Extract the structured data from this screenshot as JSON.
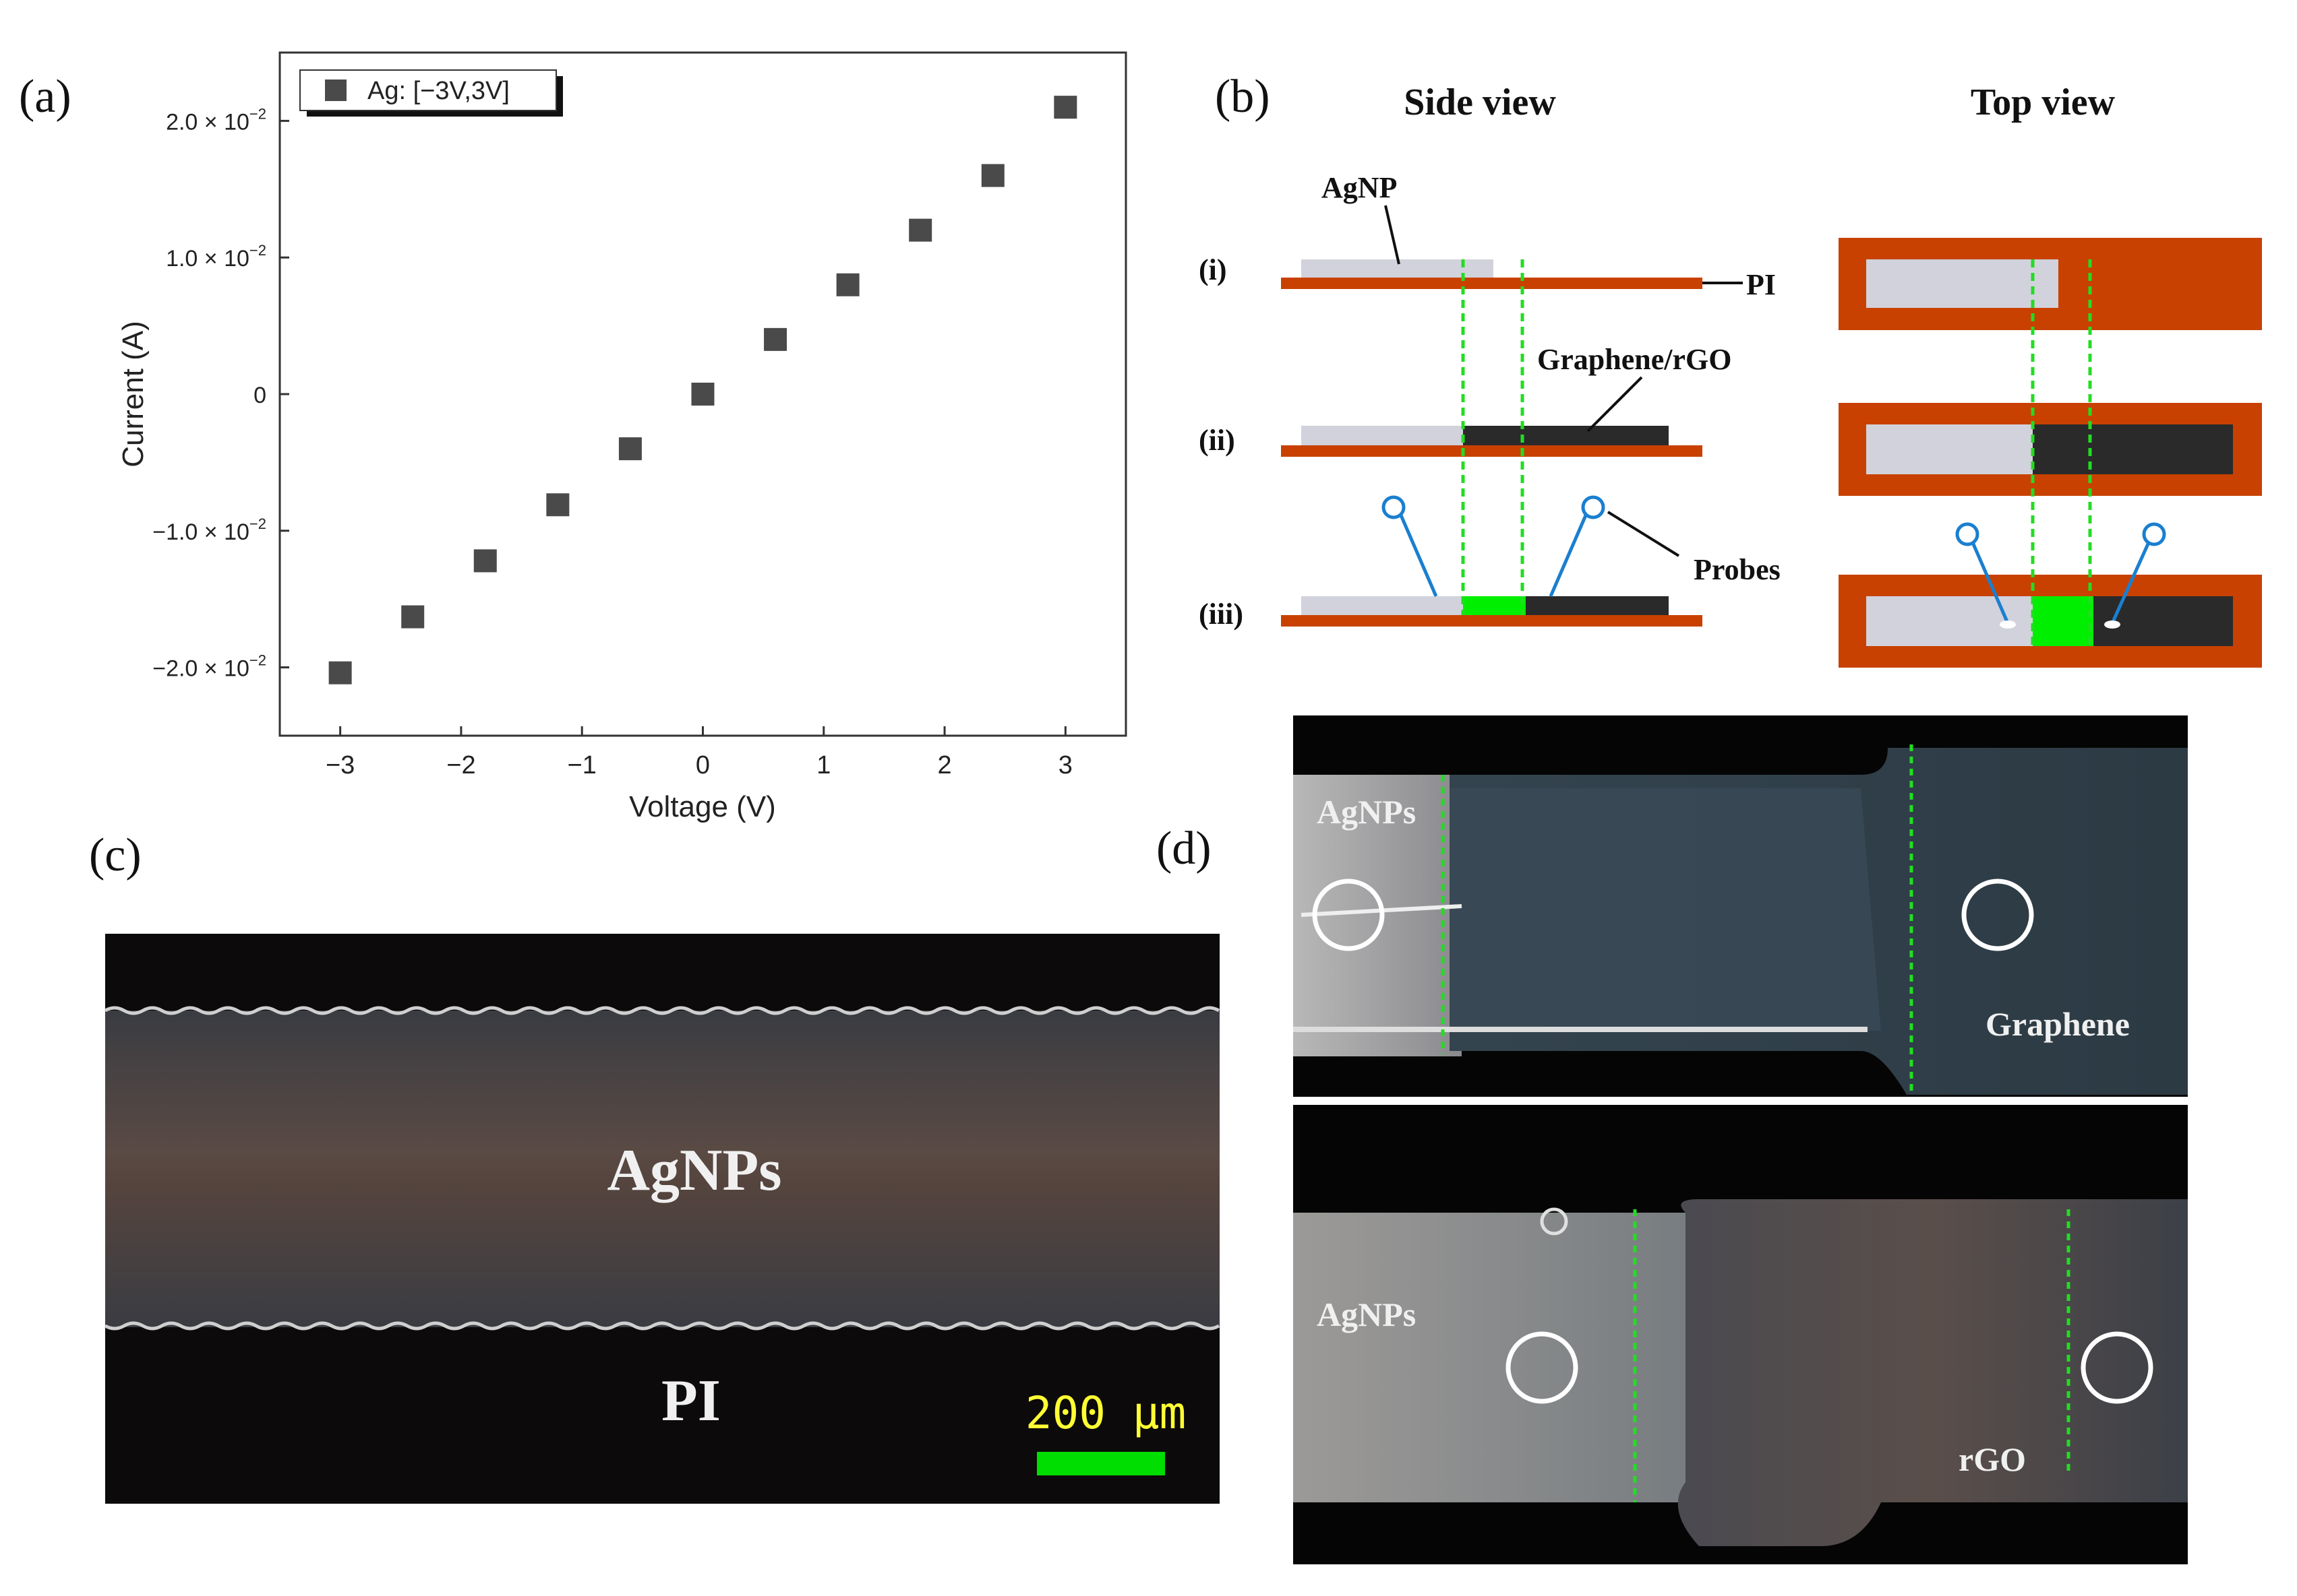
{
  "panel_labels": {
    "a": "(a)",
    "b": "(b)",
    "c": "(c)",
    "d": "(d)"
  },
  "chart_data": {
    "type": "scatter",
    "xlabel": "Voltage (V)",
    "ylabel": "Current (A)",
    "xlim": [
      -3.5,
      3.5
    ],
    "ylim": [
      -0.025,
      0.025
    ],
    "x_ticks": [
      -3,
      -2,
      -1,
      0,
      1,
      2,
      3
    ],
    "x_tick_labels": [
      "−3",
      "−2",
      "−1",
      "0",
      "1",
      "2",
      "3"
    ],
    "y_ticks": [
      -0.02,
      -0.01,
      0,
      0.01,
      0.02
    ],
    "y_tick_labels": [
      {
        "mantissa": "−2.0 × 10",
        "exp": "−2"
      },
      {
        "mantissa": "−1.0 × 10",
        "exp": "−2"
      },
      {
        "mantissa": "0",
        "exp": ""
      },
      {
        "mantissa": "1.0 × 10",
        "exp": "−2"
      },
      {
        "mantissa": "2.0 × 10",
        "exp": "−2"
      }
    ],
    "grid": false,
    "legend_position": "top-left",
    "series": [
      {
        "name": "Ag: [−3V,3V]",
        "marker": "square",
        "color": "#4a4a4a",
        "x": [
          -3,
          -2.4,
          -1.8,
          -1.2,
          -0.6,
          0,
          0.6,
          1.2,
          1.8,
          2.4,
          3
        ],
        "y": [
          -0.0204,
          -0.0163,
          -0.0122,
          -0.0081,
          -0.004,
          0.0,
          0.004,
          0.008,
          0.012,
          0.016,
          0.021
        ]
      }
    ]
  },
  "schematic": {
    "side_title": "Side view",
    "top_title": "Top view",
    "rows": [
      "(i)",
      "(ii)",
      "(iii)"
    ],
    "labels": {
      "agnp": "AgNP",
      "pi": "PI",
      "graphene_rgo": "Graphene/rGO",
      "probes": "Probes"
    },
    "colors": {
      "pi": "#c84100",
      "agnp": "#d2d2dc",
      "graphene": "#2a2a2a",
      "channel": "#00ee00",
      "probe": "#1a7fd0",
      "guide": "#22dd22"
    }
  },
  "photo_c": {
    "agnps": "AgNPs",
    "pi": "PI",
    "scale": "200 μm",
    "scale_color": "#ffff33",
    "bar_color": "#00dd00"
  },
  "photo_d": {
    "top_agnps": "AgNPs",
    "top_graphene": "Graphene",
    "bottom_agnps": "AgNPs",
    "bottom_rgo": "rGO"
  }
}
